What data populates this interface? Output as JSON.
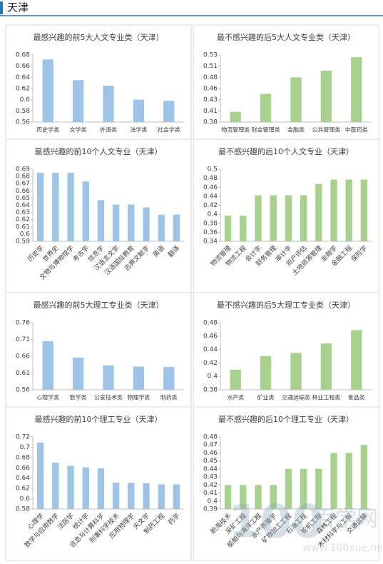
{
  "header": {
    "title": "天津"
  },
  "chart_data": [
    {
      "type": "bar",
      "title": "最感兴趣的前5大人文专业类（天津）",
      "color": "#9dc3e6",
      "categories": [
        "历史学类",
        "文学类",
        "外语类",
        "法学类",
        "社会学类"
      ],
      "values": [
        0.672,
        0.635,
        0.625,
        0.6,
        0.598
      ],
      "ylim": [
        0.56,
        0.68
      ],
      "yticks": [
        0.56,
        0.58,
        0.6,
        0.62,
        0.64,
        0.66,
        0.68
      ]
    },
    {
      "type": "bar",
      "title": "最不感兴趣的后5大人文专业类（天津）",
      "color": "#a9d18e",
      "categories": [
        "物流管理类",
        "财会管理类",
        "金融类",
        "公共管理类",
        "中医药类"
      ],
      "values": [
        0.403,
        0.443,
        0.48,
        0.495,
        0.525
      ],
      "ylim": [
        0.38,
        0.53
      ],
      "yticks": [
        {
          "value": 0.38,
          "label": "0.38"
        },
        {
          "value": 0.405,
          "label": "0.41"
        },
        {
          "value": 0.43,
          "label": "0.43"
        },
        {
          "value": 0.455,
          "label": "0.46"
        },
        {
          "value": 0.48,
          "label": "0.48"
        },
        {
          "value": 0.505,
          "label": "0.51"
        },
        {
          "value": 0.53,
          "label": "0.53"
        }
      ]
    },
    {
      "type": "bar",
      "title": "最感兴趣的前10个人文专业（天津）",
      "color": "#9dc3e6",
      "categories": [
        "历史学",
        "世界史",
        "文物与博物馆学",
        "考古学",
        "信息学",
        "汉语言文学",
        "汉语国际教育",
        "古典文献学",
        "英语",
        "翻译"
      ],
      "values": [
        0.685,
        0.685,
        0.685,
        0.673,
        0.647,
        0.641,
        0.641,
        0.637,
        0.627,
        0.627
      ],
      "ylim": [
        0.59,
        0.69
      ],
      "yticks": [
        0.59,
        0.6,
        0.61,
        0.62,
        0.63,
        0.64,
        0.65,
        0.66,
        0.67,
        0.68,
        0.69
      ]
    },
    {
      "type": "bar",
      "title": "最不感兴趣的后10个人文专业（天津）",
      "color": "#a9d18e",
      "categories": [
        "物流管理",
        "物流工程",
        "会计学",
        "财务管理",
        "审计学",
        "资产评估",
        "土地资源管理",
        "金融学",
        "金融工程",
        "保险学"
      ],
      "values": [
        0.397,
        0.397,
        0.442,
        0.442,
        0.442,
        0.442,
        0.467,
        0.477,
        0.477,
        0.477
      ],
      "ylim": [
        0.34,
        0.5
      ],
      "yticks": [
        0.34,
        0.36,
        0.38,
        0.4,
        0.42,
        0.44,
        0.46,
        0.48,
        0.5
      ]
    },
    {
      "type": "bar",
      "title": "最感兴趣的前5大理工专业类（天津）",
      "color": "#9dc3e6",
      "categories": [
        "心理学类",
        "数学类",
        "公安技术类",
        "物理学类",
        "制药类"
      ],
      "values": [
        0.705,
        0.656,
        0.633,
        0.629,
        0.628
      ],
      "ylim": [
        0.56,
        0.76
      ],
      "yticks": [
        0.56,
        0.61,
        0.66,
        0.71,
        0.76
      ]
    },
    {
      "type": "bar",
      "title": "最不感兴趣的后5大理工专业类（天津）",
      "color": "#a9d18e",
      "categories": [
        "水产类",
        "矿业类",
        "交通运输类",
        "林业工程类",
        "食品类"
      ],
      "values": [
        0.41,
        0.43,
        0.435,
        0.449,
        0.469
      ],
      "ylim": [
        0.38,
        0.48
      ],
      "yticks": [
        0.38,
        0.4,
        0.42,
        0.44,
        0.46,
        0.48
      ]
    },
    {
      "type": "bar",
      "title": "最感兴趣的前10个理工专业（天津）",
      "color": "#9dc3e6",
      "categories": [
        "心理学",
        "数学与应用数学",
        "法医学",
        "统计学",
        "信息与计算科学",
        "刑事科学技术",
        "应用物理学",
        "天文学",
        "制药工程",
        "药学"
      ],
      "values": [
        0.709,
        0.67,
        0.664,
        0.661,
        0.659,
        0.631,
        0.631,
        0.63,
        0.628,
        0.628
      ],
      "ylim": [
        0.58,
        0.72
      ],
      "yticks": [
        0.58,
        0.6,
        0.62,
        0.64,
        0.66,
        0.68,
        0.7,
        0.72
      ]
    },
    {
      "type": "bar",
      "title": "最不感兴趣的后10个理工专业（天津）",
      "color": "#a9d18e",
      "categories": [
        "航海技术",
        "采矿工程",
        "船舶与海洋工程",
        "水产养殖学",
        "矿物加工工程",
        "石油工程",
        "轮机工程",
        "森林工程",
        "木材科学与工程",
        "交通运输"
      ],
      "values": [
        0.42,
        0.42,
        0.42,
        0.42,
        0.44,
        0.44,
        0.44,
        0.46,
        0.46,
        0.47
      ],
      "ylim": [
        0.39,
        0.48
      ],
      "yticks": [
        0.39,
        0.4,
        0.41,
        0.42,
        0.43,
        0.44,
        0.45,
        0.46,
        0.47,
        0.48
      ]
    }
  ],
  "watermark": {
    "logo": "100",
    "name": "百学网",
    "url": "www.100xue.net"
  }
}
